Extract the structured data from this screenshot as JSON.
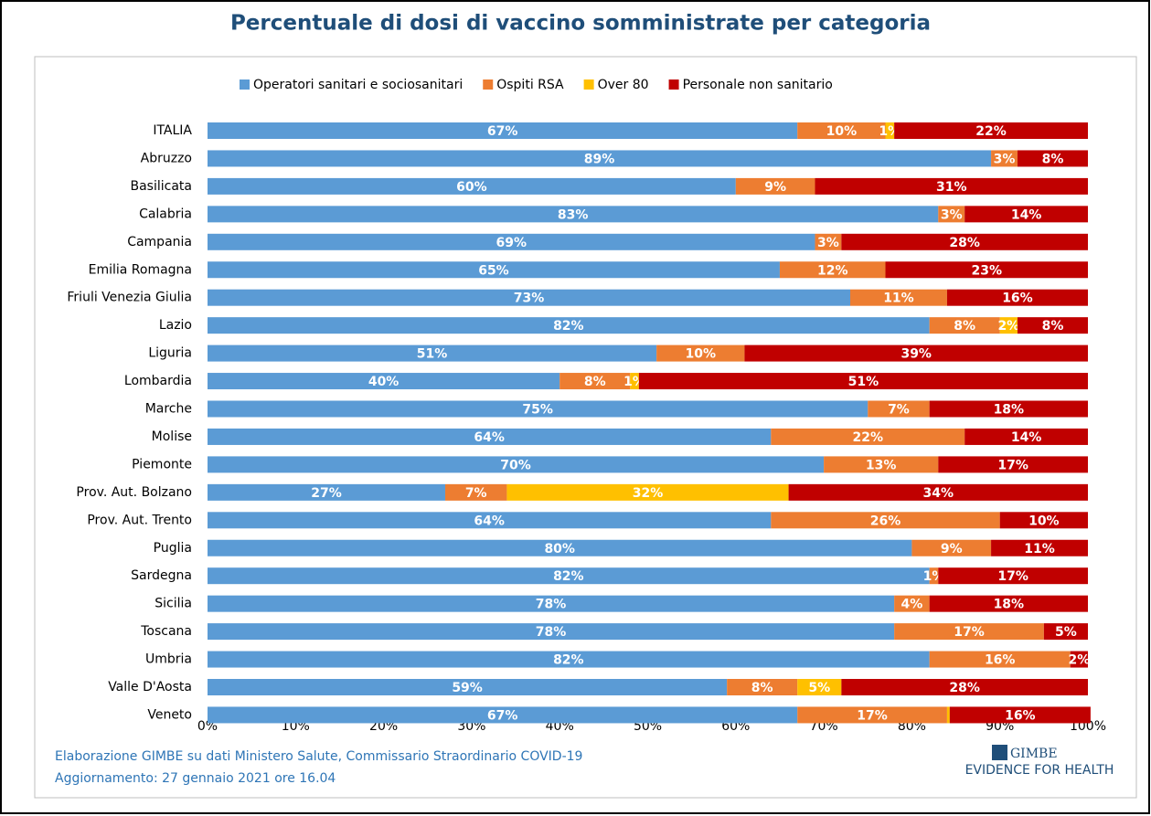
{
  "chart_data": {
    "type": "stacked-bar-horizontal",
    "title": "Percentuale di dosi di vaccino somministrate per categoria",
    "categories": [
      "ITALIA",
      "Abruzzo",
      "Basilicata",
      "Calabria",
      "Campania",
      "Emilia Romagna",
      "Friuli Venezia Giulia",
      "Lazio",
      "Liguria",
      "Lombardia",
      "Marche",
      "Molise",
      "Piemonte",
      "Prov. Aut. Bolzano",
      "Prov. Aut. Trento",
      "Puglia",
      "Sardegna",
      "Sicilia",
      "Toscana",
      "Umbria",
      "Valle D'Aosta",
      "Veneto"
    ],
    "series": [
      {
        "name": "Operatori sanitari e sociosanitari",
        "color": "#5b9bd5",
        "values": [
          67,
          89,
          60,
          83,
          69,
          65,
          73,
          82,
          51,
          40,
          75,
          64,
          70,
          27,
          64,
          80,
          82,
          78,
          78,
          82,
          59,
          67
        ],
        "value_labels": [
          "67%",
          "89%",
          "60%",
          "83%",
          "69%",
          "65%",
          "73%",
          "82%",
          "51%",
          "40%",
          "75%",
          "64%",
          "70%",
          "27%",
          "64%",
          "80%",
          "82%",
          "78%",
          "78%",
          "82%",
          "59%",
          "67%"
        ]
      },
      {
        "name": "Ospiti RSA",
        "color": "#ed7d31",
        "values": [
          10,
          3,
          9,
          3,
          3,
          12,
          11,
          8,
          10,
          8,
          7,
          22,
          13,
          7,
          26,
          9,
          1,
          4,
          17,
          16,
          8,
          17
        ],
        "value_labels": [
          "10%",
          "3%",
          "9%",
          "3%",
          "3%",
          "12%",
          "11%",
          "8%",
          "10%",
          "8%",
          "7%",
          "22%",
          "13%",
          "7%",
          "26%",
          "9%",
          "1%",
          "4%",
          "17%",
          "16%",
          "8%",
          "17%"
        ]
      },
      {
        "name": "Over 80",
        "color": "#ffc000",
        "values": [
          1,
          0,
          0,
          0,
          0,
          0,
          0,
          2,
          0,
          1,
          0,
          0,
          0,
          32,
          0,
          0,
          0,
          0,
          0,
          0,
          5,
          0.3
        ],
        "value_labels": [
          "1%",
          null,
          null,
          null,
          null,
          null,
          null,
          "2%",
          null,
          "1%",
          null,
          null,
          null,
          "32%",
          null,
          null,
          null,
          null,
          null,
          null,
          "5%",
          null
        ]
      },
      {
        "name": "Personale non sanitario",
        "color": "#c00000",
        "values": [
          22,
          8,
          31,
          14,
          28,
          23,
          16,
          8,
          39,
          51,
          18,
          14,
          17,
          34,
          10,
          11,
          17,
          18,
          5,
          2,
          28,
          16
        ],
        "value_labels": [
          "22%",
          "8%",
          "31%",
          "14%",
          "28%",
          "23%",
          "16%",
          "8%",
          "39%",
          "51%",
          "18%",
          "14%",
          "17%",
          "34%",
          "10%",
          "11%",
          "17%",
          "18%",
          "5%",
          "2%",
          "28%",
          "16%"
        ]
      }
    ],
    "xlim": [
      0,
      100
    ],
    "xticks": [
      {
        "value": 0,
        "label": "0%"
      },
      {
        "value": 10,
        "label": "10%"
      },
      {
        "value": 20,
        "label": "20%"
      },
      {
        "value": 30,
        "label": "30%"
      },
      {
        "value": 40,
        "label": "40%"
      },
      {
        "value": 50,
        "label": "50%"
      },
      {
        "value": 60,
        "label": "60%"
      },
      {
        "value": 70,
        "label": "70%"
      },
      {
        "value": 80,
        "label": "80%"
      },
      {
        "value": 90,
        "label": "90%"
      },
      {
        "value": 100,
        "label": "100%"
      }
    ],
    "grid": false,
    "legend": "top",
    "source": "Elaborazione GIMBE su dati Ministero Salute, Commissario Straordinario COVID-19",
    "updated": "Aggiornamento: 27 gennaio 2021 ore 16.04",
    "logo": "GIMBE",
    "logo_tagline": "EVIDENCE FOR HEALTH"
  }
}
